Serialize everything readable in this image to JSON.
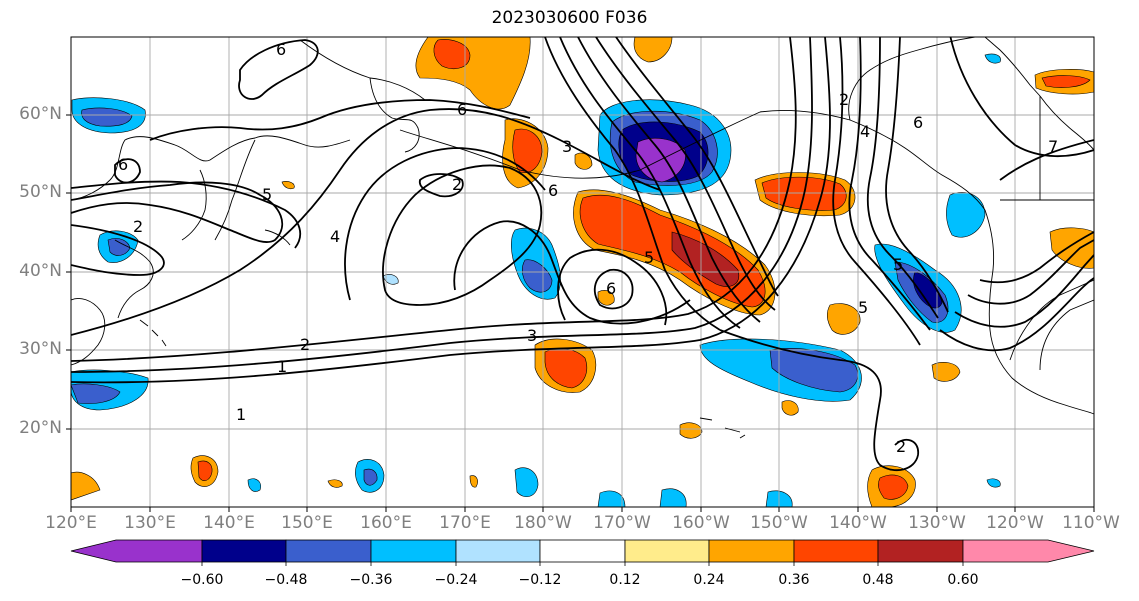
{
  "title": "2023030600 F036",
  "lat_labels": [
    "60°N",
    "50°N",
    "40°N",
    "30°N",
    "20°N"
  ],
  "lon_labels": [
    "120°E",
    "130°E",
    "140°E",
    "150°E",
    "160°E",
    "170°E",
    "180°W",
    "170°W",
    "160°W",
    "150°W",
    "140°W",
    "130°W",
    "120°W",
    "110°W"
  ],
  "colorbar": {
    "colors": [
      "#9932cc",
      "#00008b",
      "#3a5fcd",
      "#00bfff",
      "#b0e2ff",
      "#ffffff",
      "#ffec8b",
      "#ffa500",
      "#ff4500",
      "#b22222",
      "#ff88aa"
    ],
    "tick_labels": [
      "−0.60",
      "−0.48",
      "−0.36",
      "−0.24",
      "−0.12",
      "0.12",
      "0.24",
      "0.36",
      "0.48",
      "0.60"
    ]
  },
  "contour_labels": [
    "6",
    "6",
    "6",
    "2",
    "5",
    "4",
    "2",
    "6",
    "5",
    "1",
    "2",
    "3",
    "6",
    "5",
    "2",
    "4",
    "6",
    "7",
    "5",
    "3",
    "2",
    "1"
  ],
  "colors": {
    "frame": "#000000",
    "grid": "#a9a9a9",
    "tick_text": "#7f7f7f"
  }
}
